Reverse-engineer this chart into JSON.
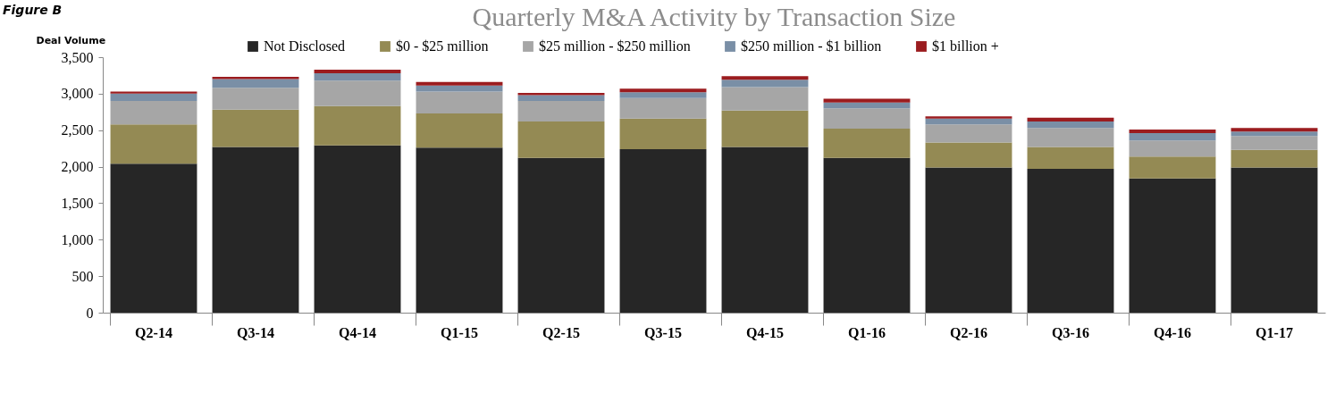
{
  "chart_data": {
    "type": "bar",
    "title": "Quarterly M&A Activity by Transaction Size",
    "ylabel": "Deal Volume",
    "annotations": [
      "Figure B"
    ],
    "categories": [
      "Q2-14",
      "Q3-14",
      "Q4-14",
      "Q1-15",
      "Q2-15",
      "Q3-15",
      "Q4-15",
      "Q1-16",
      "Q2-16",
      "Q3-16",
      "Q4-16",
      "Q1-17"
    ],
    "stacked": true,
    "series": [
      {
        "name": "Not Disclosed",
        "color": "#262626",
        "values": [
          2040,
          2270,
          2290,
          2260,
          2120,
          2240,
          2270,
          2120,
          1990,
          1970,
          1840,
          1990
        ]
      },
      {
        "name": "$0 - $25 million",
        "color": "#948a54",
        "values": [
          540,
          510,
          540,
          470,
          500,
          420,
          500,
          400,
          340,
          300,
          300,
          240
        ]
      },
      {
        "name": "$25 million - $250 million",
        "color": "#a6a6a6",
        "values": [
          320,
          300,
          350,
          300,
          280,
          280,
          320,
          280,
          250,
          260,
          220,
          190
        ]
      },
      {
        "name": "$250 million - $1 billion",
        "color": "#7a8fa6",
        "values": [
          100,
          120,
          100,
          80,
          80,
          80,
          100,
          80,
          80,
          90,
          100,
          60
        ]
      },
      {
        "name": "$1 billion +",
        "color": "#9b1c1f",
        "values": [
          30,
          30,
          50,
          50,
          30,
          50,
          50,
          50,
          30,
          50,
          50,
          50
        ]
      }
    ],
    "ylim": [
      0,
      3500
    ],
    "yticks": [
      {
        "value": 0,
        "label": "0"
      },
      {
        "value": 500,
        "label": "500"
      },
      {
        "value": 1000,
        "label": "1,000"
      },
      {
        "value": 1500,
        "label": "1,500"
      },
      {
        "value": 2000,
        "label": "2,000"
      },
      {
        "value": 2500,
        "label": "2,500"
      },
      {
        "value": 3000,
        "label": "3,000"
      },
      {
        "value": 3500,
        "label": "3,500"
      }
    ],
    "grid": false,
    "legend": "top"
  }
}
